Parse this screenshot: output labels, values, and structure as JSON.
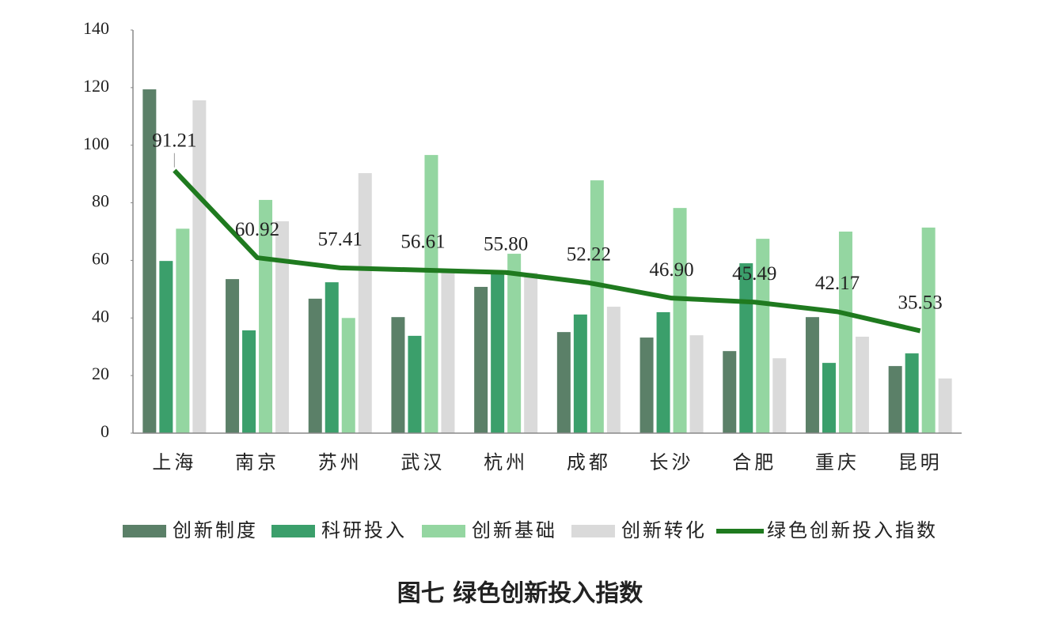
{
  "chart_data": {
    "type": "bar",
    "title": "图七  绿色创新投入指数",
    "categories": [
      "上海",
      "南京",
      "苏州",
      "武汉",
      "杭州",
      "成都",
      "长沙",
      "合肥",
      "重庆",
      "昆明"
    ],
    "ylim": [
      0,
      140
    ],
    "yticks": [
      0,
      20,
      40,
      60,
      80,
      100,
      120,
      140
    ],
    "grid": false,
    "legend": "bottom",
    "series": [
      {
        "name": "创新制度",
        "color": "#5b8068",
        "values": [
          119.4,
          53.5,
          46.7,
          40.3,
          50.8,
          35.1,
          33.2,
          28.5,
          40.3,
          23.3
        ]
      },
      {
        "name": "科研投入",
        "color": "#3b9f6b",
        "values": [
          59.8,
          35.7,
          52.4,
          33.8,
          56.5,
          41.2,
          42,
          59,
          24.4,
          27.7
        ]
      },
      {
        "name": "创新基础",
        "color": "#94d6a1",
        "values": [
          71,
          81,
          40,
          96.6,
          62.3,
          87.8,
          78.2,
          67.5,
          70,
          71.4
        ]
      },
      {
        "name": "创新转化",
        "color": "#dadada",
        "values": [
          115.6,
          73.6,
          90.3,
          56,
          55.7,
          43.9,
          34,
          26,
          33.5,
          19
        ]
      },
      {
        "name": "绿色创新投入指数",
        "type": "line",
        "color": "#1f7a1f",
        "values": [
          91.21,
          60.92,
          57.41,
          56.61,
          55.8,
          52.22,
          46.9,
          45.49,
          42.17,
          35.53
        ],
        "value_labels": [
          "91.21",
          "60.92",
          "57.41",
          "56.61",
          "55.80",
          "52.22",
          "46.90",
          "45.49",
          "42.17",
          "35.53"
        ]
      }
    ]
  }
}
